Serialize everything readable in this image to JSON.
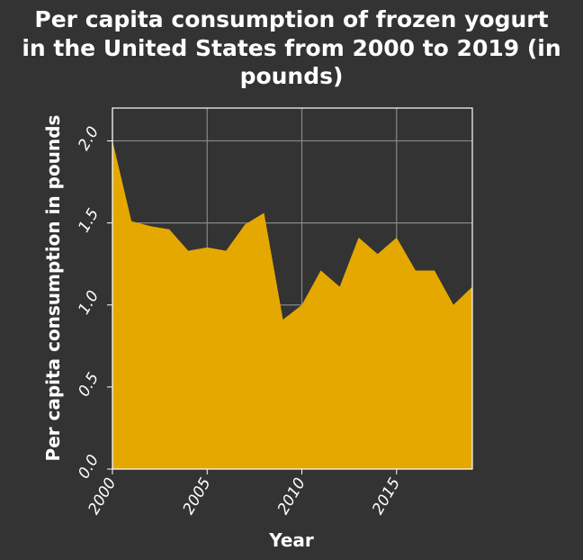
{
  "chart_data": {
    "type": "area",
    "title_lines": [
      "Per capita consumption of frozen yogurt",
      "in the United States from 2000 to 2019 (in",
      "pounds)"
    ],
    "xlabel": "Year",
    "ylabel": "Per capita consumption in pounds",
    "x": [
      2000,
      2001,
      2002,
      2003,
      2004,
      2005,
      2006,
      2007,
      2008,
      2009,
      2010,
      2011,
      2012,
      2013,
      2014,
      2015,
      2016,
      2017,
      2018,
      2019
    ],
    "series": [
      {
        "values": [
          2.0,
          1.51,
          1.48,
          1.46,
          1.33,
          1.35,
          1.33,
          1.49,
          1.56,
          0.91,
          1.0,
          1.21,
          1.11,
          1.41,
          1.31,
          1.41,
          1.21,
          1.21,
          1.0,
          1.11
        ],
        "color": "#e5a800"
      }
    ],
    "xlim": [
      2000,
      2019
    ],
    "ylim": [
      0,
      2.2
    ],
    "x_ticks": [
      "2000",
      "2005",
      "2010",
      "2015"
    ],
    "y_ticks": [
      "0.0",
      "0.5",
      "1.0",
      "1.5",
      "2.0"
    ],
    "grid": true,
    "colors": {
      "background": "#333333",
      "fill": "#e5a800",
      "grid": "#888888",
      "text": "#ffffff"
    }
  }
}
